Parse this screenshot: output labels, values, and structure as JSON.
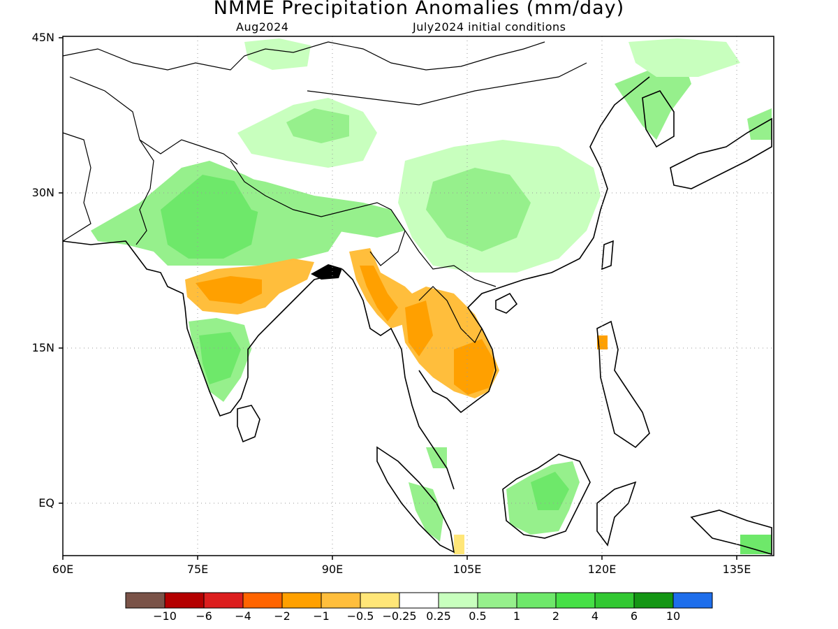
{
  "title": "NMME Precipitation Anomalies (mm/day)",
  "subtitle_left": "Aug2024",
  "subtitle_right": "July2024 initial conditions",
  "map": {
    "lon_range": [
      60,
      140
    ],
    "lat_range": [
      -5,
      45
    ],
    "lat_labels": [
      "45N",
      "30N",
      "15N",
      "EQ"
    ],
    "lon_labels": [
      "60E",
      "75E",
      "90E",
      "105E",
      "120E",
      "135E"
    ],
    "gridlines": "dotted"
  },
  "colorbar": {
    "colors": [
      "#7a5348",
      "#b40000",
      "#dc1e1e",
      "#ff6400",
      "#ffa000",
      "#ffbe3c",
      "#ffe678",
      "#ffffff",
      "#c8ffbe",
      "#96f08c",
      "#6ee86a",
      "#46e046",
      "#32c832",
      "#149614",
      "#1e6eeb"
    ],
    "labels": [
      "−10",
      "−6",
      "−4",
      "−2",
      "−1",
      "−0.5",
      "−0.25",
      "0.25",
      "0.5",
      "1",
      "2",
      "4",
      "6",
      "10"
    ]
  },
  "anomalies": {
    "positive_regions": [
      "northern India",
      "Tibetan Plateau",
      "southern China",
      "Korea",
      "Borneo",
      "southern India"
    ],
    "negative_regions": [
      "central India",
      "Myanmar",
      "Thailand",
      "Laos",
      "Cambodia"
    ]
  }
}
